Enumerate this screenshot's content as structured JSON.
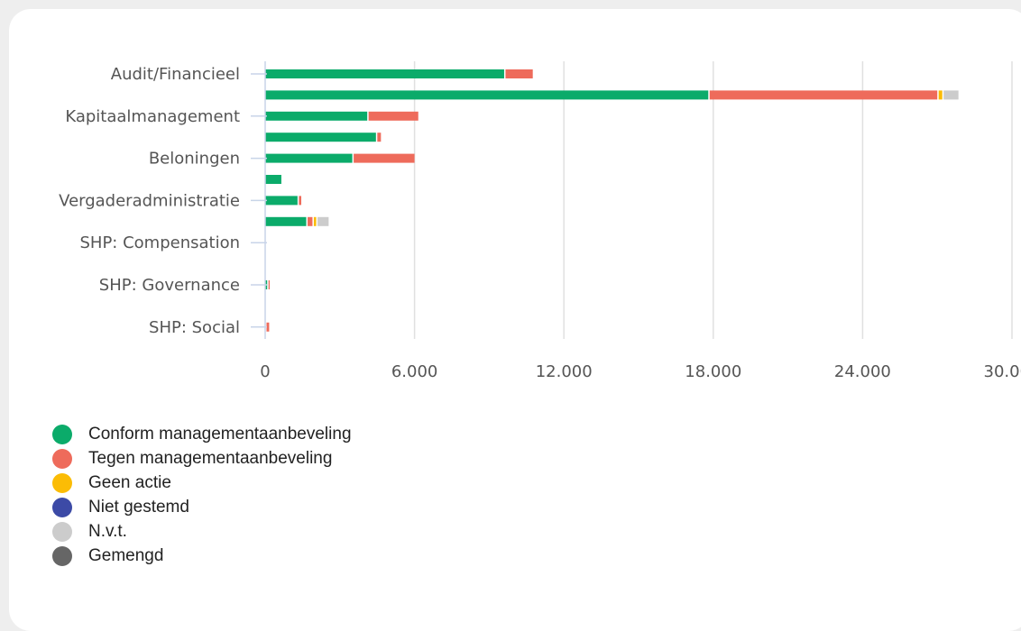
{
  "chart_data": {
    "type": "bar",
    "orientation": "horizontal",
    "stacked": true,
    "title": "",
    "xlabel": "",
    "ylabel": "",
    "xlim": [
      0,
      30000
    ],
    "x_ticks": [
      "0",
      "6.000",
      "12.000",
      "18.000",
      "24.000",
      "30.000"
    ],
    "x_tick_values": [
      0,
      6000,
      12000,
      18000,
      24000,
      30000
    ],
    "grid": true,
    "legend_position": "bottom-left",
    "categories": [
      "Audit/Financieel",
      "",
      "Kapitaalmanagement",
      "",
      "Beloningen",
      "",
      "Vergaderadministratie",
      "",
      "SHP: Compensation",
      "",
      "SHP: Governance",
      "",
      "SHP: Social"
    ],
    "series": [
      {
        "name": "Conform managementaanbeveling",
        "color": "#0bab6a",
        "values": [
          9600,
          17800,
          4100,
          4450,
          3500,
          650,
          1300,
          1650,
          0,
          0,
          80,
          0,
          0
        ]
      },
      {
        "name": "Tegen managementaanbeveling",
        "color": "#ee6b5b",
        "values": [
          1150,
          9200,
          2050,
          200,
          2500,
          0,
          150,
          250,
          0,
          0,
          100,
          0,
          160
        ]
      },
      {
        "name": "Geen actie",
        "color": "#fbbc05",
        "values": [
          0,
          200,
          0,
          0,
          0,
          0,
          0,
          150,
          0,
          0,
          0,
          0,
          0
        ]
      },
      {
        "name": "Niet gestemd",
        "color": "#3c4aa6",
        "values": [
          0,
          0,
          0,
          0,
          0,
          0,
          0,
          0,
          0,
          0,
          0,
          0,
          0
        ]
      },
      {
        "name": "N.v.t.",
        "color": "#cccccc",
        "values": [
          0,
          650,
          0,
          0,
          0,
          0,
          0,
          500,
          0,
          0,
          0,
          0,
          0
        ]
      },
      {
        "name": "Gemengd",
        "color": "#666666",
        "values": [
          0,
          0,
          0,
          0,
          0,
          0,
          0,
          0,
          0,
          0,
          0,
          0,
          0
        ]
      }
    ]
  }
}
